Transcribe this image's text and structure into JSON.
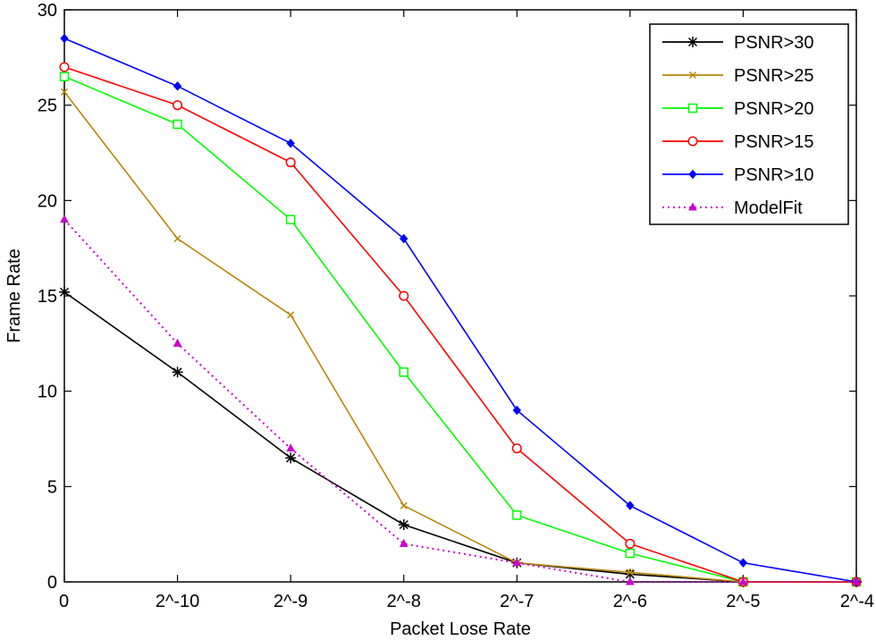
{
  "chart_data": {
    "type": "line",
    "title": "",
    "xlabel": "Packet Lose Rate",
    "ylabel": "Frame Rate",
    "categories": [
      "0",
      "2^-10",
      "2^-9",
      "2^-8",
      "2^-7",
      "2^-6",
      "2^-5",
      "2^-4"
    ],
    "ylim": [
      0,
      30
    ],
    "yticks": [
      0,
      5,
      10,
      15,
      20,
      25,
      30
    ],
    "grid": false,
    "legend_position": "top-right",
    "series": [
      {
        "name": "PSNR>30",
        "color": "#000000",
        "marker": "asterisk",
        "dash": "solid",
        "values": [
          15.2,
          11,
          6.5,
          3,
          1,
          0.4,
          0,
          0
        ]
      },
      {
        "name": "PSNR>25",
        "color": "#b8860b",
        "marker": "cross",
        "dash": "solid",
        "values": [
          25.7,
          18,
          14,
          4,
          1,
          0.5,
          0,
          0
        ]
      },
      {
        "name": "PSNR>20",
        "color": "#00ff00",
        "marker": "square",
        "dash": "solid",
        "values": [
          26.5,
          24,
          19,
          11,
          3.5,
          1.5,
          0,
          0
        ]
      },
      {
        "name": "PSNR>15",
        "color": "#ff0000",
        "marker": "circle",
        "dash": "solid",
        "values": [
          27,
          25,
          22,
          15,
          7,
          2,
          0,
          0
        ]
      },
      {
        "name": "PSNR>10",
        "color": "#0000ff",
        "marker": "diamond",
        "dash": "solid",
        "values": [
          28.5,
          26,
          23,
          18,
          9,
          4,
          1,
          0
        ]
      },
      {
        "name": "ModelFit",
        "color": "#cc00cc",
        "marker": "triangle",
        "dash": "dotted",
        "values": [
          19,
          12.5,
          7,
          2,
          1,
          0,
          0,
          0
        ]
      }
    ]
  }
}
